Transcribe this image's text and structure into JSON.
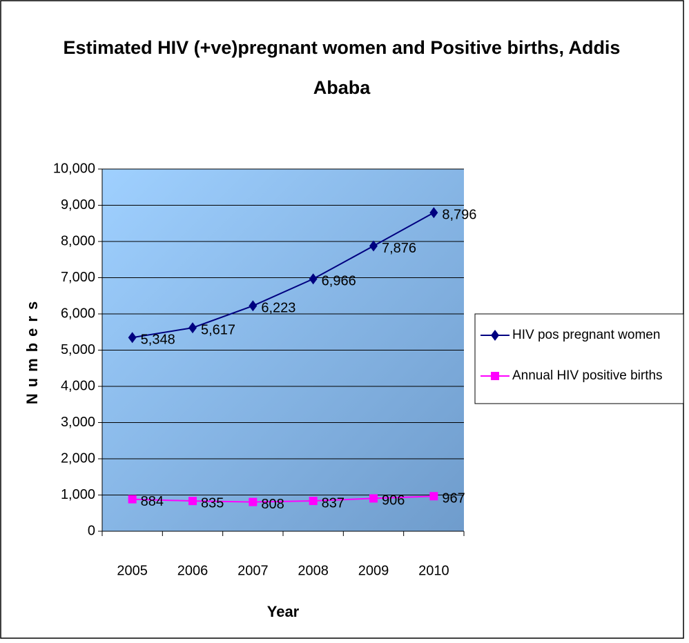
{
  "chart_data": {
    "type": "line",
    "title": "Estimated HIV (+ve)pregnant women and Positive births, Addis Ababa",
    "xlabel": "Year",
    "ylabel": "Numbers",
    "categories": [
      "2005",
      "2006",
      "2007",
      "2008",
      "2009",
      "2010"
    ],
    "series": [
      {
        "name": "HIV pos pregnant women",
        "color": "#000080",
        "marker": "diamond",
        "values": [
          5348,
          5617,
          6223,
          6966,
          7876,
          8796
        ],
        "value_labels": [
          "5,348",
          "5,617",
          "6,223",
          "6,966",
          "7,876",
          "8,796"
        ]
      },
      {
        "name": "Annual HIV positive births",
        "color": "#ff00ff",
        "marker": "square",
        "values": [
          884,
          835,
          808,
          837,
          906,
          967
        ]
      }
    ],
    "ylim": [
      0,
      10000
    ],
    "yticks": [
      0,
      {
        "value": 1000,
        "label": "1,000"
      },
      {
        "value": 2000,
        "label": "2,000"
      },
      {
        "value": 3000,
        "label": "3,000"
      },
      {
        "value": 4000,
        "label": "4,000"
      },
      {
        "value": 5000,
        "label": "5,000"
      },
      {
        "value": 6000,
        "label": "6,000"
      },
      {
        "value": 7000,
        "label": "7,000"
      },
      {
        "value": 8000,
        "label": "8,000"
      },
      {
        "value": 9000,
        "label": "9,000"
      },
      {
        "value": 10000,
        "label": "10,000"
      }
    ],
    "grid": true,
    "legend": "right"
  }
}
